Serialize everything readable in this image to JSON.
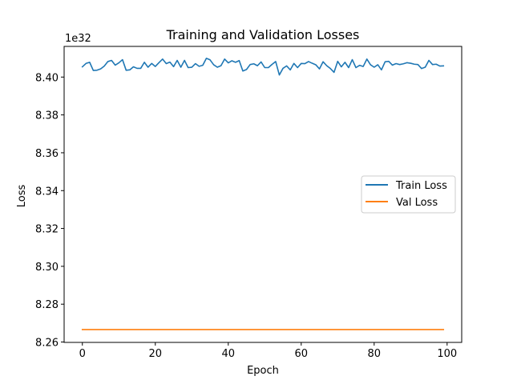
{
  "chart_data": {
    "type": "line",
    "title": "Training and Validation Losses",
    "xlabel": "Epoch",
    "ylabel": "Loss",
    "y_offset_label": "1e32",
    "xlim": [
      -5,
      104
    ],
    "ylim": [
      8.2598,
      8.4162
    ],
    "xticks": [
      0,
      20,
      40,
      60,
      80,
      100
    ],
    "yticks": [
      8.26,
      8.28,
      8.3,
      8.32,
      8.34,
      8.36,
      8.38,
      8.4
    ],
    "ytick_labels": [
      "8.26",
      "8.28",
      "8.30",
      "8.32",
      "8.34",
      "8.36",
      "8.38",
      "8.40"
    ],
    "grid": false,
    "legend_position": "center-right",
    "x": [
      0,
      1,
      2,
      3,
      4,
      5,
      6,
      7,
      8,
      9,
      10,
      11,
      12,
      13,
      14,
      15,
      16,
      17,
      18,
      19,
      20,
      21,
      22,
      23,
      24,
      25,
      26,
      27,
      28,
      29,
      30,
      31,
      32,
      33,
      34,
      35,
      36,
      37,
      38,
      39,
      40,
      41,
      42,
      43,
      44,
      45,
      46,
      47,
      48,
      49,
      50,
      51,
      52,
      53,
      54,
      55,
      56,
      57,
      58,
      59,
      60,
      61,
      62,
      63,
      64,
      65,
      66,
      67,
      68,
      69,
      70,
      71,
      72,
      73,
      74,
      75,
      76,
      77,
      78,
      79,
      80,
      81,
      82,
      83,
      84,
      85,
      86,
      87,
      88,
      89,
      90,
      91,
      92,
      93,
      94,
      95,
      96,
      97,
      98,
      99
    ],
    "series": [
      {
        "name": "Train Loss",
        "color": "#1f77b4",
        "values": [
          8.4054,
          8.4072,
          8.4078,
          8.4035,
          8.4036,
          8.4043,
          8.4058,
          8.4082,
          8.4088,
          8.4063,
          8.4075,
          8.4092,
          8.4036,
          8.4038,
          8.4054,
          8.4046,
          8.4046,
          8.4078,
          8.4052,
          8.4072,
          8.4056,
          8.4076,
          8.4095,
          8.4071,
          8.4079,
          8.4055,
          8.4088,
          8.4052,
          8.4088,
          8.405,
          8.4052,
          8.4071,
          8.4057,
          8.4062,
          8.4099,
          8.4091,
          8.4065,
          8.4052,
          8.406,
          8.4095,
          8.4075,
          8.4086,
          8.4078,
          8.4087,
          8.4032,
          8.404,
          8.4066,
          8.407,
          8.406,
          8.408,
          8.405,
          8.405,
          8.4067,
          8.4082,
          8.4011,
          8.4046,
          8.4059,
          8.4038,
          8.4072,
          8.405,
          8.4072,
          8.4071,
          8.4082,
          8.4073,
          8.4065,
          8.4043,
          8.4081,
          8.406,
          8.4045,
          8.4025,
          8.4083,
          8.4054,
          8.4078,
          8.405,
          8.4092,
          8.405,
          8.4062,
          8.4056,
          8.4095,
          8.4065,
          8.4052,
          8.4065,
          8.4038,
          8.4081,
          8.4083,
          8.4063,
          8.4071,
          8.4066,
          8.407,
          8.4076,
          8.4073,
          8.4068,
          8.4066,
          8.4045,
          8.4052,
          8.4088,
          8.4066,
          8.4068,
          8.4058,
          8.4059
        ]
      },
      {
        "name": "Val Loss",
        "color": "#ff7f0e",
        "values": [
          8.2666,
          8.2666,
          8.2666,
          8.2666,
          8.2666,
          8.2666,
          8.2666,
          8.2666,
          8.2666,
          8.2666,
          8.2666,
          8.2666,
          8.2666,
          8.2666,
          8.2666,
          8.2666,
          8.2666,
          8.2666,
          8.2666,
          8.2666,
          8.2666,
          8.2666,
          8.2666,
          8.2666,
          8.2666,
          8.2666,
          8.2666,
          8.2666,
          8.2666,
          8.2666,
          8.2666,
          8.2666,
          8.2666,
          8.2666,
          8.2666,
          8.2666,
          8.2666,
          8.2666,
          8.2666,
          8.2666,
          8.2666,
          8.2666,
          8.2666,
          8.2666,
          8.2666,
          8.2666,
          8.2666,
          8.2666,
          8.2666,
          8.2666,
          8.2666,
          8.2666,
          8.2666,
          8.2666,
          8.2666,
          8.2666,
          8.2666,
          8.2666,
          8.2666,
          8.2666,
          8.2666,
          8.2666,
          8.2666,
          8.2666,
          8.2666,
          8.2666,
          8.2666,
          8.2666,
          8.2666,
          8.2666,
          8.2666,
          8.2666,
          8.2666,
          8.2666,
          8.2666,
          8.2666,
          8.2666,
          8.2666,
          8.2666,
          8.2666,
          8.2666,
          8.2666,
          8.2666,
          8.2666,
          8.2666,
          8.2666,
          8.2666,
          8.2666,
          8.2666,
          8.2666,
          8.2666,
          8.2666,
          8.2666,
          8.2666,
          8.2666,
          8.2666,
          8.2666,
          8.2666,
          8.2666,
          8.2666
        ]
      }
    ]
  }
}
